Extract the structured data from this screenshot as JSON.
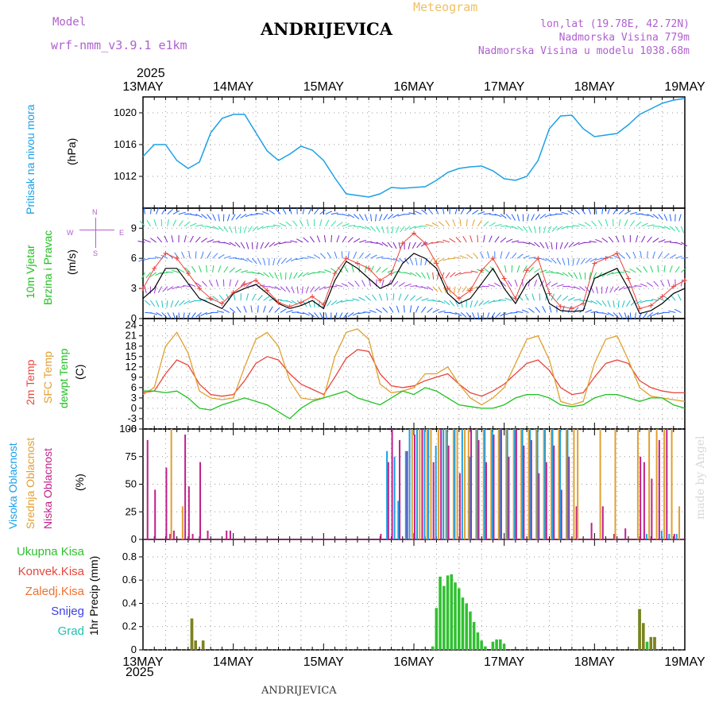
{
  "header": {
    "model_label": "Model",
    "model_name": "wrf-nmm_v3.9.1 e1km",
    "title": "ANDRIJEVICA",
    "meteogram": "Meteogram",
    "lonlat": "lon,lat (19.78E, 42.72N)",
    "elevation": "Nadmorska Visina 779m",
    "elevation_model": "Nadmorska Visina u modelu 1038.68m",
    "year": "2025",
    "footer_title": "ANDRIJEVICA",
    "made_by": "made by Angel"
  },
  "time_axis": {
    "labels": [
      "13MAY",
      "14MAY",
      "15MAY",
      "16MAY",
      "17MAY",
      "18MAY",
      "19MAY"
    ]
  },
  "panel_labels": {
    "pressure": [
      "Pritisak na nivou mora",
      "(hPa)"
    ],
    "wind": [
      "10m Vjetar",
      "Brzina i Pravac",
      "(m/s)"
    ],
    "compass": [
      "N",
      "W",
      "E",
      "S"
    ],
    "temp": [
      "2m Temp",
      "SFC Temp",
      "dewpt Temp",
      "(C)"
    ],
    "cloud": [
      "Visoka Oblacnost",
      "Srednja Oblacnost",
      "Niska Oblacnost",
      "(%)"
    ],
    "precip_axis": "1hr Precip (mm)",
    "precip_legend": [
      "Ukupna Kisa",
      "Konvek.Kisa",
      "Zaledj.Kisa",
      "Snijeg",
      "Grad"
    ]
  },
  "colors": {
    "pressure": "#1ca0e6",
    "temp2m": "#e8453c",
    "sfc": "#e0a030",
    "dew": "#20c020",
    "high_cloud": "#1ca0e6",
    "mid_cloud": "#e0a030",
    "low_cloud": "#c0208a",
    "total_rain": "#30c030",
    "conv_rain": "#e8453c",
    "frz_rain": "#f07030",
    "snow": "#4040e0",
    "hail": "#20c0b0"
  },
  "chart_data": [
    {
      "type": "line",
      "panel": "pressure",
      "ylabel": "(hPa)",
      "ylim": [
        1008,
        1022
      ],
      "yticks": [
        1012,
        1016,
        1020
      ],
      "x": [
        0,
        3,
        6,
        9,
        12,
        15,
        18,
        21,
        24,
        27,
        30,
        33,
        36,
        39,
        42,
        45,
        48,
        51,
        54,
        57,
        60,
        63,
        66,
        69,
        72,
        75,
        78,
        81,
        84,
        87,
        90,
        93,
        96,
        99,
        102,
        105,
        108,
        111,
        114,
        117,
        120,
        123,
        126,
        129,
        132,
        135,
        138,
        141,
        144
      ],
      "values": [
        1014.5,
        1016,
        1016,
        1014,
        1013,
        1013.8,
        1017.5,
        1019.3,
        1019.8,
        1019.8,
        1017.5,
        1015.2,
        1014,
        1014.8,
        1015.8,
        1015.3,
        1014,
        1011.8,
        1009.8,
        1009.6,
        1009.4,
        1009.8,
        1010.6,
        1010.5,
        1010.6,
        1010.7,
        1011.5,
        1012.5,
        1013,
        1013.2,
        1013.3,
        1012.7,
        1011.7,
        1011.5,
        1012,
        1014,
        1018,
        1019.6,
        1019.7,
        1018,
        1017,
        1017.2,
        1017.4,
        1018.5,
        1019.8,
        1020.5,
        1021.2,
        1021.6,
        1021.8
      ]
    },
    {
      "type": "line",
      "panel": "wind",
      "ylabel": "(m/s)",
      "ylim": [
        0,
        11
      ],
      "yticks": [
        0,
        3,
        6,
        9
      ],
      "x": [
        0,
        3,
        6,
        9,
        12,
        15,
        18,
        21,
        24,
        27,
        30,
        33,
        36,
        39,
        42,
        45,
        48,
        51,
        54,
        57,
        60,
        63,
        66,
        69,
        72,
        75,
        78,
        81,
        84,
        87,
        90,
        93,
        96,
        99,
        102,
        105,
        108,
        111,
        114,
        117,
        120,
        123,
        126,
        129,
        132,
        135,
        138,
        141,
        144
      ],
      "series": [
        {
          "name": "speed",
          "values": [
            2,
            3,
            5,
            5,
            3.5,
            2,
            1.5,
            1,
            2.5,
            3,
            3.4,
            2.5,
            1.5,
            1,
            1.3,
            1.8,
            1,
            3.8,
            5.7,
            5,
            4,
            3,
            3.5,
            5.5,
            6.5,
            6,
            5,
            2.5,
            1.5,
            2,
            3.5,
            5,
            3,
            1.5,
            3.5,
            4.5,
            1.5,
            0.8,
            0.7,
            0.8,
            4,
            4.5,
            5,
            3,
            0.5,
            0.8,
            1.5,
            2.5,
            3
          ]
        },
        {
          "name": "gust",
          "values": [
            3,
            5,
            6.5,
            6,
            4.5,
            3,
            2,
            1.5,
            2.6,
            3.4,
            3.8,
            2.8,
            1.6,
            1.2,
            1.6,
            2.2,
            1.4,
            4.5,
            6,
            5.5,
            5,
            3.8,
            4.5,
            7.5,
            8.5,
            7.5,
            5.5,
            3,
            2,
            2.8,
            4.8,
            6,
            4,
            2,
            4.8,
            6,
            2.5,
            1.2,
            1,
            1.5,
            5.5,
            6,
            6.5,
            4,
            1,
            1.3,
            2.2,
            3.2,
            3.8
          ]
        }
      ]
    },
    {
      "type": "line",
      "panel": "temp",
      "ylabel": "(C)",
      "ylim": [
        -6,
        26
      ],
      "yticks": [
        -6,
        -3,
        0,
        3,
        6,
        9,
        12,
        15,
        18,
        21,
        24
      ],
      "x": [
        0,
        3,
        6,
        9,
        12,
        15,
        18,
        21,
        24,
        27,
        30,
        33,
        36,
        39,
        42,
        45,
        48,
        51,
        54,
        57,
        60,
        63,
        66,
        69,
        72,
        75,
        78,
        81,
        84,
        87,
        90,
        93,
        96,
        99,
        102,
        105,
        108,
        111,
        114,
        117,
        120,
        123,
        126,
        129,
        132,
        135,
        138,
        141,
        144
      ],
      "series": [
        {
          "name": "2m Temp",
          "values": [
            4.5,
            5,
            10,
            14,
            12.5,
            7,
            4,
            3.5,
            4,
            8,
            13,
            15,
            14,
            10,
            7,
            5.5,
            4,
            9,
            14.5,
            17,
            16.5,
            10,
            6.5,
            6,
            6.5,
            8,
            9,
            10,
            7,
            4.5,
            3.5,
            5,
            7,
            10,
            13,
            14,
            11,
            6,
            4,
            4.5,
            9,
            13,
            14,
            13,
            8,
            6,
            5,
            4.5,
            4.5
          ]
        },
        {
          "name": "SFC Temp",
          "values": [
            4,
            6,
            18,
            22,
            16,
            5,
            3,
            2.5,
            3,
            12,
            20,
            22,
            18,
            8,
            3,
            2.5,
            3,
            15,
            22,
            23,
            20,
            7,
            4.5,
            5,
            6,
            10,
            10,
            12,
            7,
            3,
            1,
            3,
            6,
            13,
            20,
            21,
            14,
            2,
            1,
            2,
            13,
            20,
            21,
            14,
            6,
            3.5,
            3,
            2.5,
            2
          ]
        },
        {
          "name": "dewpt Temp",
          "values": [
            5,
            5,
            4.5,
            5,
            3,
            0,
            -0.5,
            1,
            2,
            3,
            2,
            1,
            -1,
            -3,
            0,
            2,
            3,
            4,
            5,
            3,
            2,
            1,
            3,
            5,
            4,
            6,
            5,
            3,
            1,
            0.5,
            0,
            0,
            1,
            3,
            4,
            4,
            3,
            1,
            0.5,
            1,
            3,
            4,
            4,
            3,
            2,
            3,
            3,
            1,
            0
          ]
        }
      ]
    },
    {
      "type": "bar",
      "panel": "cloud",
      "ylabel": "(%)",
      "ylim": [
        0,
        100
      ],
      "yticks": [
        0,
        25,
        50,
        75,
        100
      ],
      "series": [
        {
          "name": "Niska Oblacnost",
          "x": [
            1,
            3,
            6,
            7,
            8,
            11,
            12,
            13,
            15,
            17,
            22,
            23,
            63,
            65,
            66,
            68,
            70,
            72,
            74,
            77,
            79,
            81,
            84,
            87,
            89,
            91,
            93,
            95,
            97,
            99,
            101,
            103,
            105,
            107,
            109,
            111,
            113,
            115,
            119,
            122,
            125,
            128,
            132,
            133,
            135,
            137,
            139,
            141
          ],
          "values": [
            90,
            45,
            65,
            5,
            8,
            95,
            48,
            5,
            70,
            8,
            8,
            8,
            5,
            70,
            100,
            90,
            80,
            95,
            100,
            70,
            100,
            85,
            60,
            100,
            90,
            70,
            95,
            100,
            75,
            100,
            85,
            90,
            60,
            70,
            85,
            45,
            75,
            30,
            15,
            30,
            5,
            10,
            75,
            70,
            55,
            90,
            100,
            5
          ]
        },
        {
          "name": "Srednja Oblacnost",
          "x": [
            7,
            10,
            71,
            73,
            75,
            76,
            78,
            80,
            82,
            83,
            85,
            86,
            88,
            90,
            92,
            94,
            96,
            98,
            100,
            102,
            104,
            106,
            108,
            110,
            112,
            114,
            115,
            121,
            125,
            131,
            134,
            136,
            138,
            140,
            142
          ],
          "values": [
            100,
            30,
            100,
            100,
            100,
            100,
            100,
            100,
            100,
            100,
            100,
            100,
            100,
            100,
            100,
            100,
            100,
            100,
            100,
            100,
            100,
            100,
            100,
            100,
            100,
            100,
            100,
            100,
            100,
            100,
            100,
            100,
            100,
            100,
            30
          ]
        },
        {
          "name": "Visoka Oblacnost",
          "x": [
            64,
            66,
            67,
            69,
            70,
            72,
            74,
            75,
            77,
            79,
            80,
            82,
            84,
            86,
            88,
            90,
            92,
            94,
            96,
            98,
            100,
            102,
            104,
            106,
            108,
            110,
            112,
            133,
            137,
            139,
            141
          ],
          "values": [
            80,
            75,
            35,
            80,
            100,
            100,
            100,
            100,
            85,
            100,
            100,
            100,
            100,
            75,
            100,
            100,
            100,
            100,
            100,
            100,
            100,
            100,
            100,
            100,
            100,
            100,
            100,
            5,
            8,
            5,
            5
          ]
        }
      ]
    },
    {
      "type": "bar",
      "panel": "precip",
      "ylabel": "1hr Precip (mm)",
      "ylim": [
        0,
        0.95
      ],
      "yticks": [
        0,
        0.2,
        0.4,
        0.6,
        0.8
      ],
      "series": [
        {
          "name": "Ukupna Kisa",
          "x": [
            13,
            14,
            16,
            77,
            78,
            79,
            80,
            81,
            82,
            83,
            84,
            85,
            86,
            87,
            88,
            89,
            90,
            91,
            93,
            94,
            95,
            96,
            132,
            133,
            134,
            135,
            136
          ],
          "values": [
            0.27,
            0.08,
            0.08,
            0.03,
            0.36,
            0.63,
            0.55,
            0.64,
            0.65,
            0.58,
            0.53,
            0.45,
            0.4,
            0.33,
            0.24,
            0.15,
            0.08,
            0.03,
            0.07,
            0.09,
            0.09,
            0.05,
            0.35,
            0.23,
            0.07,
            0.11,
            0.11
          ]
        },
        {
          "name": "Konvek.Kisa",
          "x": [
            13,
            14,
            16,
            132,
            133,
            135,
            136
          ],
          "values": [
            0.27,
            0.08,
            0.08,
            0.35,
            0.23,
            0.11,
            0.11
          ]
        }
      ]
    }
  ]
}
